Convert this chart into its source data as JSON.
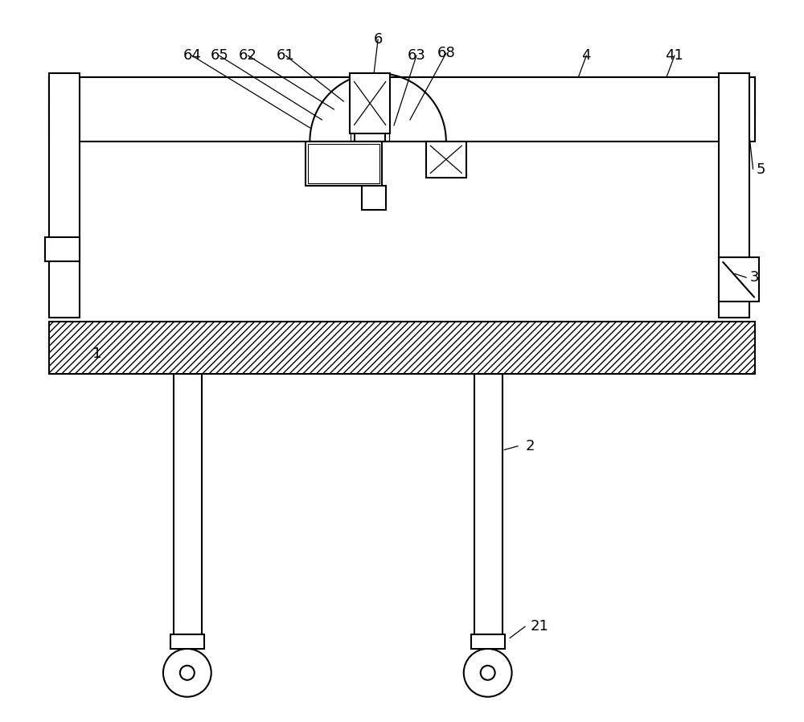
{
  "bg_color": "#ffffff",
  "line_color": "#000000",
  "fig_width": 10.0,
  "fig_height": 8.98,
  "dpi": 100
}
